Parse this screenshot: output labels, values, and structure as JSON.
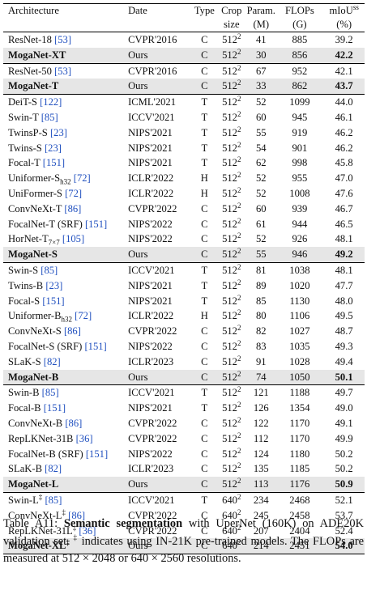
{
  "columns": {
    "arch": "Architecture",
    "date": "Date",
    "type": "Type",
    "crop1": "Crop",
    "crop2": "size",
    "param1": "Param.",
    "param2": "(M)",
    "flops1": "FLOPs",
    "flops2": "(G)",
    "miou1": "mIoU",
    "miou_sup": "ss",
    "miou2": "(%)"
  },
  "groups": [
    {
      "rows": [
        {
          "arch": "ResNet-18",
          "cite": "[53]",
          "date": "CVPR'2016",
          "type": "C",
          "crop": "512",
          "crop_exp": "2",
          "param": "41",
          "flops": "885",
          "miou": "39.2"
        },
        {
          "arch": "MogaNet-XT",
          "date": "Ours",
          "type": "C",
          "crop": "512",
          "crop_exp": "2",
          "param": "30",
          "flops": "856",
          "miou": "42.2",
          "highlight": true
        }
      ]
    },
    {
      "rows": [
        {
          "arch": "ResNet-50",
          "cite": "[53]",
          "date": "CVPR'2016",
          "type": "C",
          "crop": "512",
          "crop_exp": "2",
          "param": "67",
          "flops": "952",
          "miou": "42.1"
        },
        {
          "arch": "MogaNet-T",
          "date": "Ours",
          "type": "C",
          "crop": "512",
          "crop_exp": "2",
          "param": "33",
          "flops": "862",
          "miou": "43.7",
          "highlight": true
        }
      ]
    },
    {
      "rows": [
        {
          "arch": "DeiT-S",
          "cite": "[122]",
          "date": "ICML'2021",
          "type": "T",
          "crop": "512",
          "crop_exp": "2",
          "param": "52",
          "flops": "1099",
          "miou": "44.0"
        },
        {
          "arch": "Swin-T",
          "cite": "[85]",
          "date": "ICCV'2021",
          "type": "T",
          "crop": "512",
          "crop_exp": "2",
          "param": "60",
          "flops": "945",
          "miou": "46.1"
        },
        {
          "arch": "TwinsP-S",
          "cite": "[23]",
          "date": "NIPS'2021",
          "type": "T",
          "crop": "512",
          "crop_exp": "2",
          "param": "55",
          "flops": "919",
          "miou": "46.2"
        },
        {
          "arch": "Twins-S",
          "cite": "[23]",
          "date": "NIPS'2021",
          "type": "T",
          "crop": "512",
          "crop_exp": "2",
          "param": "54",
          "flops": "901",
          "miou": "46.2"
        },
        {
          "arch": "Focal-T",
          "cite": "[151]",
          "date": "NIPS'2021",
          "type": "T",
          "crop": "512",
          "crop_exp": "2",
          "param": "62",
          "flops": "998",
          "miou": "45.8"
        },
        {
          "arch": "Uniformer-S",
          "arch_sub": "h32",
          "cite": "[72]",
          "date": "ICLR'2022",
          "type": "H",
          "crop": "512",
          "crop_exp": "2",
          "param": "52",
          "flops": "955",
          "miou": "47.0"
        },
        {
          "arch": "UniFormer-S",
          "cite": "[72]",
          "date": "ICLR'2022",
          "type": "H",
          "crop": "512",
          "crop_exp": "2",
          "param": "52",
          "flops": "1008",
          "miou": "47.6"
        },
        {
          "arch": "ConvNeXt-T",
          "cite": "[86]",
          "date": "CVPR'2022",
          "type": "C",
          "crop": "512",
          "crop_exp": "2",
          "param": "60",
          "flops": "939",
          "miou": "46.7"
        },
        {
          "arch": "FocalNet-T (SRF)",
          "cite": "[151]",
          "date": "NIPS'2022",
          "type": "C",
          "crop": "512",
          "crop_exp": "2",
          "param": "61",
          "flops": "944",
          "miou": "46.5"
        },
        {
          "arch": "HorNet-T",
          "arch_sub": "7×7",
          "cite": "[105]",
          "date": "NIPS'2022",
          "type": "C",
          "crop": "512",
          "crop_exp": "2",
          "param": "52",
          "flops": "926",
          "miou": "48.1"
        },
        {
          "arch": "MogaNet-S",
          "date": "Ours",
          "type": "C",
          "crop": "512",
          "crop_exp": "2",
          "param": "55",
          "flops": "946",
          "miou": "49.2",
          "highlight": true
        }
      ]
    },
    {
      "rows": [
        {
          "arch": "Swin-S",
          "cite": "[85]",
          "date": "ICCV'2021",
          "type": "T",
          "crop": "512",
          "crop_exp": "2",
          "param": "81",
          "flops": "1038",
          "miou": "48.1"
        },
        {
          "arch": "Twins-B",
          "cite": "[23]",
          "date": "NIPS'2021",
          "type": "T",
          "crop": "512",
          "crop_exp": "2",
          "param": "89",
          "flops": "1020",
          "miou": "47.7"
        },
        {
          "arch": "Focal-S",
          "cite": "[151]",
          "date": "NIPS'2021",
          "type": "T",
          "crop": "512",
          "crop_exp": "2",
          "param": "85",
          "flops": "1130",
          "miou": "48.0"
        },
        {
          "arch": "Uniformer-B",
          "arch_sub": "h32",
          "cite": "[72]",
          "date": "ICLR'2022",
          "type": "H",
          "crop": "512",
          "crop_exp": "2",
          "param": "80",
          "flops": "1106",
          "miou": "49.5"
        },
        {
          "arch": "ConvNeXt-S",
          "cite": "[86]",
          "date": "CVPR'2022",
          "type": "C",
          "crop": "512",
          "crop_exp": "2",
          "param": "82",
          "flops": "1027",
          "miou": "48.7"
        },
        {
          "arch": "FocalNet-S (SRF)",
          "cite": "[151]",
          "date": "NIPS'2022",
          "type": "C",
          "crop": "512",
          "crop_exp": "2",
          "param": "83",
          "flops": "1035",
          "miou": "49.3"
        },
        {
          "arch": "SLaK-S",
          "cite": "[82]",
          "date": "ICLR'2023",
          "type": "C",
          "crop": "512",
          "crop_exp": "2",
          "param": "91",
          "flops": "1028",
          "miou": "49.4"
        },
        {
          "arch": "MogaNet-B",
          "date": "Ours",
          "type": "C",
          "crop": "512",
          "crop_exp": "2",
          "param": "74",
          "flops": "1050",
          "miou": "50.1",
          "highlight": true
        }
      ]
    },
    {
      "rows": [
        {
          "arch": "Swin-B",
          "cite": "[85]",
          "date": "ICCV'2021",
          "type": "T",
          "crop": "512",
          "crop_exp": "2",
          "param": "121",
          "flops": "1188",
          "miou": "49.7"
        },
        {
          "arch": "Focal-B",
          "cite": "[151]",
          "date": "NIPS'2021",
          "type": "T",
          "crop": "512",
          "crop_exp": "2",
          "param": "126",
          "flops": "1354",
          "miou": "49.0"
        },
        {
          "arch": "ConvNeXt-B",
          "cite": "[86]",
          "date": "CVPR'2022",
          "type": "C",
          "crop": "512",
          "crop_exp": "2",
          "param": "122",
          "flops": "1170",
          "miou": "49.1"
        },
        {
          "arch": "RepLKNet-31B",
          "cite": "[36]",
          "date": "CVPR'2022",
          "type": "C",
          "crop": "512",
          "crop_exp": "2",
          "param": "112",
          "flops": "1170",
          "miou": "49.9"
        },
        {
          "arch": "FocalNet-B (SRF)",
          "cite": "[151]",
          "date": "NIPS'2022",
          "type": "C",
          "crop": "512",
          "crop_exp": "2",
          "param": "124",
          "flops": "1180",
          "miou": "50.2"
        },
        {
          "arch": "SLaK-B",
          "cite": "[82]",
          "date": "ICLR'2023",
          "type": "C",
          "crop": "512",
          "crop_exp": "2",
          "param": "135",
          "flops": "1185",
          "miou": "50.2"
        },
        {
          "arch": "MogaNet-L",
          "date": "Ours",
          "type": "C",
          "crop": "512",
          "crop_exp": "2",
          "param": "113",
          "flops": "1176",
          "miou": "50.9",
          "highlight": true
        }
      ]
    },
    {
      "rows": [
        {
          "arch": "Swin-L",
          "arch_sup": "‡",
          "cite": "[85]",
          "date": "ICCV'2021",
          "type": "T",
          "crop": "640",
          "crop_exp": "2",
          "param": "234",
          "flops": "2468",
          "miou": "52.1"
        },
        {
          "arch": "ConvNeXt-L",
          "arch_sup": "‡",
          "cite": "[86]",
          "date": "CVPR'2022",
          "type": "C",
          "crop": "640",
          "crop_exp": "2",
          "param": "245",
          "flops": "2458",
          "miou": "53.7"
        },
        {
          "arch": "RepLKNet-31L",
          "arch_sup": "‡",
          "cite": "[36]",
          "date": "CVPR'2022",
          "type": "C",
          "crop": "640",
          "crop_exp": "2",
          "param": "207",
          "flops": "2404",
          "miou": "52.4"
        },
        {
          "arch": "MogaNet-XL",
          "arch_sup": "‡",
          "date": "Ours",
          "type": "C",
          "crop": "640",
          "crop_exp": "2",
          "param": "214",
          "flops": "2451",
          "miou": "54.0",
          "highlight": true
        }
      ]
    }
  ],
  "caption": {
    "prefix": "Table A11: ",
    "bold": "Semantic segmentation",
    "part1": " with UperNet (160K) on ADE20K validation set. ",
    "dagger": "‡",
    "part2": " indicates using IN-21K pre-trained models. The FLOPs are measured at 512 × 2048 or 640 × 2560 resolutions."
  },
  "colors": {
    "citation": "#1f4fbf",
    "highlight_row": "#e6e6e6"
  }
}
